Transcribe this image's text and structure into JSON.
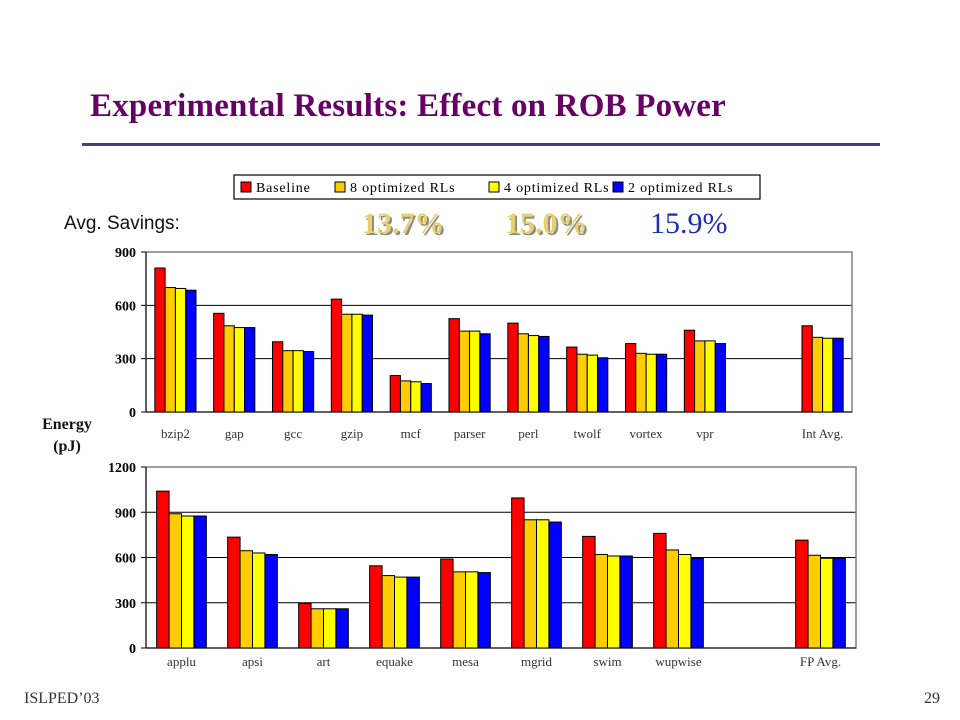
{
  "slide": {
    "title": "Experimental Results: Effect on ROB Power",
    "footer_left": "ISLPED’03",
    "page_number": "29",
    "avg_savings_label": "Avg. Savings:",
    "savings": [
      "13.7%",
      "15.0%",
      "15.9%"
    ],
    "y_axis_label_line1": "Energy",
    "y_axis_label_line2": "(pJ)"
  },
  "colors": {
    "series": [
      "#ff0000",
      "#ffcc00",
      "#ffff00",
      "#0000ff"
    ],
    "title": "#660066",
    "plot_border": "#808080"
  },
  "chart_data": [
    {
      "type": "bar",
      "legend_position": "top",
      "grid": true,
      "ylim": [
        0,
        900
      ],
      "yticks": [
        0,
        300,
        600,
        900
      ],
      "categories": [
        "bzip2",
        "gap",
        "gcc",
        "gzip",
        "mcf",
        "parser",
        "perl",
        "twolf",
        "vortex",
        "vpr",
        "",
        "Int Avg."
      ],
      "series": [
        {
          "name": "Baseline",
          "values": [
            810,
            555,
            395,
            635,
            205,
            525,
            500,
            365,
            385,
            460,
            null,
            485
          ]
        },
        {
          "name": "8 optimized RLs",
          "values": [
            700,
            485,
            345,
            550,
            175,
            455,
            440,
            325,
            330,
            400,
            null,
            420
          ]
        },
        {
          "name": "4 optimized RLs",
          "values": [
            695,
            475,
            345,
            550,
            170,
            455,
            430,
            320,
            325,
            400,
            null,
            415
          ]
        },
        {
          "name": "2 optimized RLs",
          "values": [
            685,
            475,
            340,
            545,
            160,
            440,
            425,
            305,
            325,
            385,
            null,
            415
          ]
        }
      ]
    },
    {
      "type": "bar",
      "grid": true,
      "ylim": [
        0,
        1200
      ],
      "yticks": [
        0,
        300,
        600,
        900,
        1200
      ],
      "categories": [
        "applu",
        "apsi",
        "art",
        "equake",
        "mesa",
        "mgrid",
        "swim",
        "wupwise",
        "",
        "FP Avg."
      ],
      "series": [
        {
          "name": "Baseline",
          "values": [
            1040,
            735,
            295,
            545,
            590,
            995,
            740,
            760,
            null,
            715
          ]
        },
        {
          "name": "8 optimized RLs",
          "values": [
            890,
            645,
            260,
            480,
            505,
            850,
            620,
            650,
            null,
            615
          ]
        },
        {
          "name": "4 optimized RLs",
          "values": [
            875,
            630,
            260,
            470,
            505,
            850,
            610,
            620,
            null,
            595
          ]
        },
        {
          "name": "2 optimized RLs",
          "values": [
            875,
            620,
            260,
            470,
            500,
            835,
            610,
            595,
            null,
            595
          ]
        }
      ]
    }
  ]
}
